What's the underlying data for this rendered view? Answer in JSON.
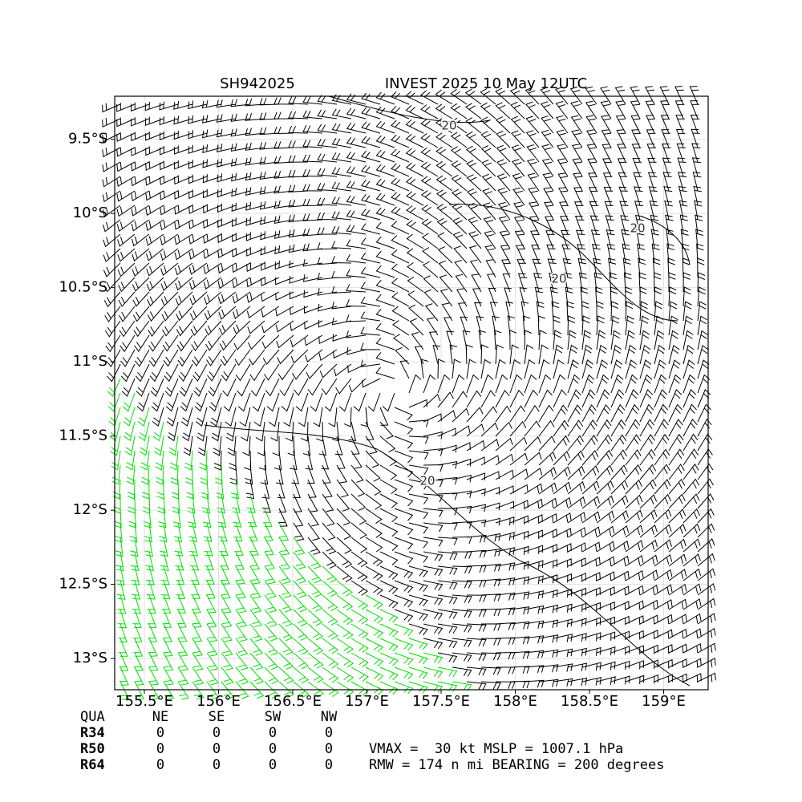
{
  "chart_data": {
    "type": "wind-barb-map",
    "title": "SH942025",
    "subtitle": "INVEST 2025 10 May 12UTC",
    "xlim": [
      155.3,
      159.3
    ],
    "ylim": [
      -13.21,
      -9.21
    ],
    "xticks": [
      {
        "value": 155.5,
        "label": "155.5°E"
      },
      {
        "value": 156,
        "label": "156°E"
      },
      {
        "value": 156.5,
        "label": "156.5°E"
      },
      {
        "value": 157,
        "label": "157°E"
      },
      {
        "value": 157.5,
        "label": "157.5°E"
      },
      {
        "value": 158,
        "label": "158°E"
      },
      {
        "value": 158.5,
        "label": "158.5°E"
      },
      {
        "value": 159,
        "label": "159°E"
      }
    ],
    "yticks": [
      {
        "value": -9.5,
        "label": "9.5°S"
      },
      {
        "value": -10,
        "label": "10°S"
      },
      {
        "value": -10.5,
        "label": "10.5°S"
      },
      {
        "value": -11,
        "label": "11°S"
      },
      {
        "value": -11.5,
        "label": "11.5°S"
      },
      {
        "value": -12,
        "label": "12°S"
      },
      {
        "value": -12.5,
        "label": "12.5°S"
      },
      {
        "value": -13,
        "label": "13°S"
      }
    ],
    "grid": true,
    "contour_labels": [
      "20",
      "20",
      "20",
      "20"
    ]
  },
  "table": {
    "header": [
      "QUA",
      "NE",
      "SE",
      "SW",
      "NW"
    ],
    "rows": [
      [
        "R34",
        0,
        0,
        0,
        0
      ],
      [
        "R50",
        0,
        0,
        0,
        0
      ],
      [
        "R64",
        0,
        0,
        0,
        0
      ]
    ]
  },
  "summary": [
    "VMAX =  30 kt MSLP = 1007.1 hPa",
    "RMW = 174 n mi BEARING = 200 degrees"
  ]
}
